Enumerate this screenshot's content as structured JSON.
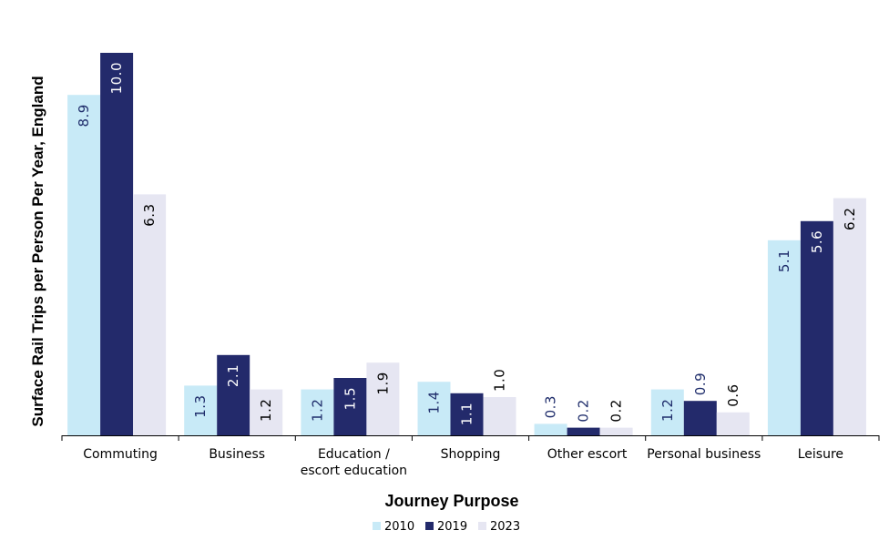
{
  "chart_data": {
    "type": "bar",
    "categories": [
      [
        "Commuting"
      ],
      [
        "Business"
      ],
      [
        "Education /",
        "escort education"
      ],
      [
        "Shopping"
      ],
      [
        "Other escort"
      ],
      [
        "Personal business"
      ],
      [
        "Leisure"
      ]
    ],
    "series": [
      {
        "name": "2010",
        "color": "#c8eaf7",
        "label_color": "#1f2d6b",
        "values": [
          8.9,
          1.3,
          1.2,
          1.4,
          0.3,
          1.2,
          5.1
        ]
      },
      {
        "name": "2019",
        "color": "#232a6b",
        "label_color": "#ffffff",
        "values": [
          10.0,
          2.1,
          1.5,
          1.1,
          0.2,
          0.9,
          5.6
        ]
      },
      {
        "name": "2023",
        "color": "#e6e6f2",
        "label_color": "#000000",
        "values": [
          6.3,
          1.2,
          1.9,
          1.0,
          0.2,
          0.6,
          6.2
        ]
      }
    ],
    "title": "",
    "xlabel": "Journey Purpose",
    "ylabel": "Surface Rail Trips per Person Per Year, England",
    "ylim": [
      0,
      10
    ],
    "grid": false,
    "legend_position": "bottom"
  }
}
